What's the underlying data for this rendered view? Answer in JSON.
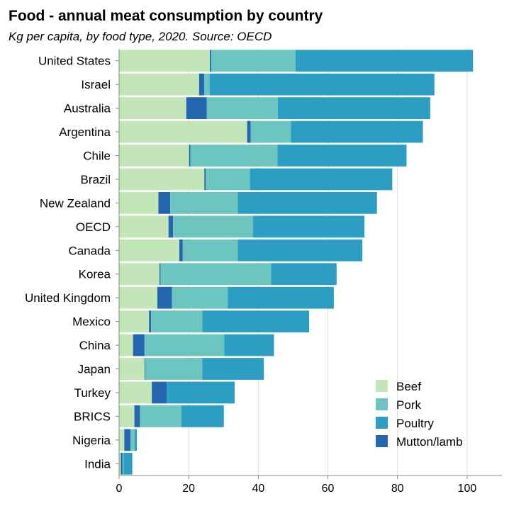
{
  "chart_data": {
    "type": "bar",
    "orientation": "horizontal",
    "stacked": true,
    "title": "Food - annual meat consumption by country",
    "subtitle": "Kg per capita, by food type, 2020. Source: OECD",
    "xlabel": "",
    "ylabel": "",
    "xlim": [
      0,
      110
    ],
    "xticks": [
      0,
      20,
      40,
      60,
      80,
      100
    ],
    "grid": true,
    "legend_position": "bottom-right",
    "categories": [
      "United States",
      "Israel",
      "Australia",
      "Argentina",
      "Chile",
      "Brazil",
      "New Zealand",
      "OECD",
      "Canada",
      "Korea",
      "United Kingdom",
      "Mexico",
      "China",
      "Japan",
      "Turkey",
      "BRICS",
      "Nigeria",
      "India"
    ],
    "series": [
      {
        "name": "Beef",
        "color": "#c2e6b8",
        "values": [
          26.1,
          23.0,
          19.3,
          36.8,
          20.1,
          24.5,
          11.3,
          14.2,
          17.3,
          11.6,
          11.0,
          8.6,
          4.0,
          7.3,
          9.4,
          4.4,
          1.5,
          0.5
        ]
      },
      {
        "name": "Mutton/lamb",
        "color": "#2466b0",
        "values": [
          0.4,
          1.5,
          5.9,
          1.0,
          0.4,
          0.4,
          3.4,
          1.3,
          1.0,
          0.3,
          4.2,
          0.6,
          3.3,
          0.2,
          4.3,
          1.6,
          1.8,
          0.5
        ]
      },
      {
        "name": "Pork",
        "color": "#6cc5bf",
        "values": [
          24.2,
          1.5,
          20.4,
          11.6,
          25.0,
          12.7,
          19.4,
          23.0,
          15.8,
          31.8,
          16.0,
          14.7,
          22.9,
          16.4,
          0.0,
          11.9,
          1.2,
          0.3
        ]
      },
      {
        "name": "Poultry",
        "color": "#2c9ec4",
        "values": [
          51.0,
          64.6,
          43.8,
          37.9,
          37.1,
          40.9,
          40.0,
          32.0,
          35.8,
          18.8,
          30.5,
          30.7,
          14.3,
          17.7,
          19.5,
          12.2,
          0.6,
          2.5
        ]
      }
    ]
  },
  "legend": {
    "items": [
      {
        "label": "Beef",
        "color": "#c2e6b8"
      },
      {
        "label": "Pork",
        "color": "#6cc5bf"
      },
      {
        "label": "Poultry",
        "color": "#2c9ec4"
      },
      {
        "label": "Mutton/lamb",
        "color": "#2466b0"
      }
    ]
  }
}
